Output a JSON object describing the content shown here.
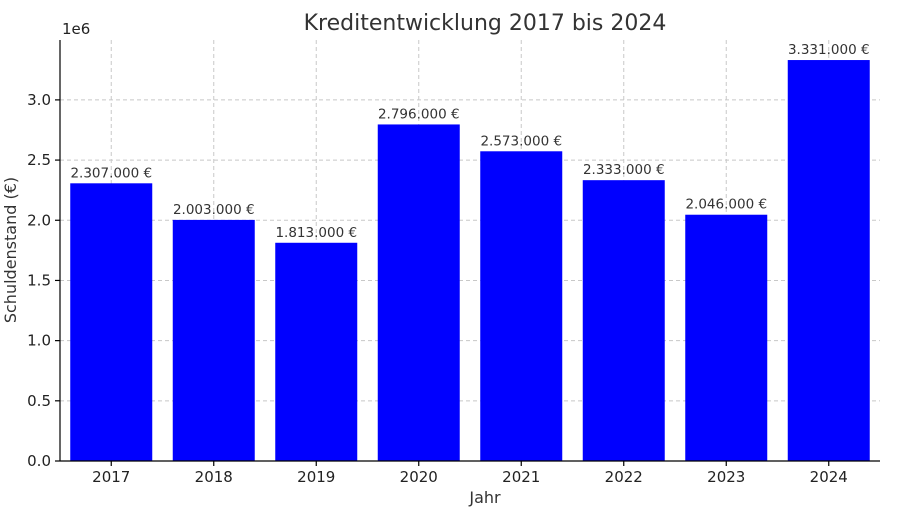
{
  "chart_data": {
    "type": "bar",
    "title": "Kreditentwicklung 2017 bis 2024",
    "xlabel": "Jahr",
    "ylabel": "Schuldenstand (€)",
    "y_offset_label": "1e6",
    "categories": [
      "2017",
      "2018",
      "2019",
      "2020",
      "2021",
      "2022",
      "2023",
      "2024"
    ],
    "values": [
      2307000,
      2003000,
      1813000,
      2796000,
      2573000,
      2333000,
      2046000,
      3331000
    ],
    "data_labels": [
      "2.307.000 €",
      "2.003.000 €",
      "1.813.000 €",
      "2.796.000 €",
      "2.573.000 €",
      "2.333.000 €",
      "2.046.000 €",
      "3.331.000 €"
    ],
    "y_ticks": [
      0,
      500000,
      1000000,
      1500000,
      2000000,
      2500000,
      3000000
    ],
    "y_tick_labels": [
      "0.0",
      "0.5",
      "1.0",
      "1.5",
      "2.0",
      "2.5",
      "3.0"
    ],
    "ylim": [
      0,
      3497550
    ],
    "grid": true,
    "bar_color": "#0000ff"
  }
}
